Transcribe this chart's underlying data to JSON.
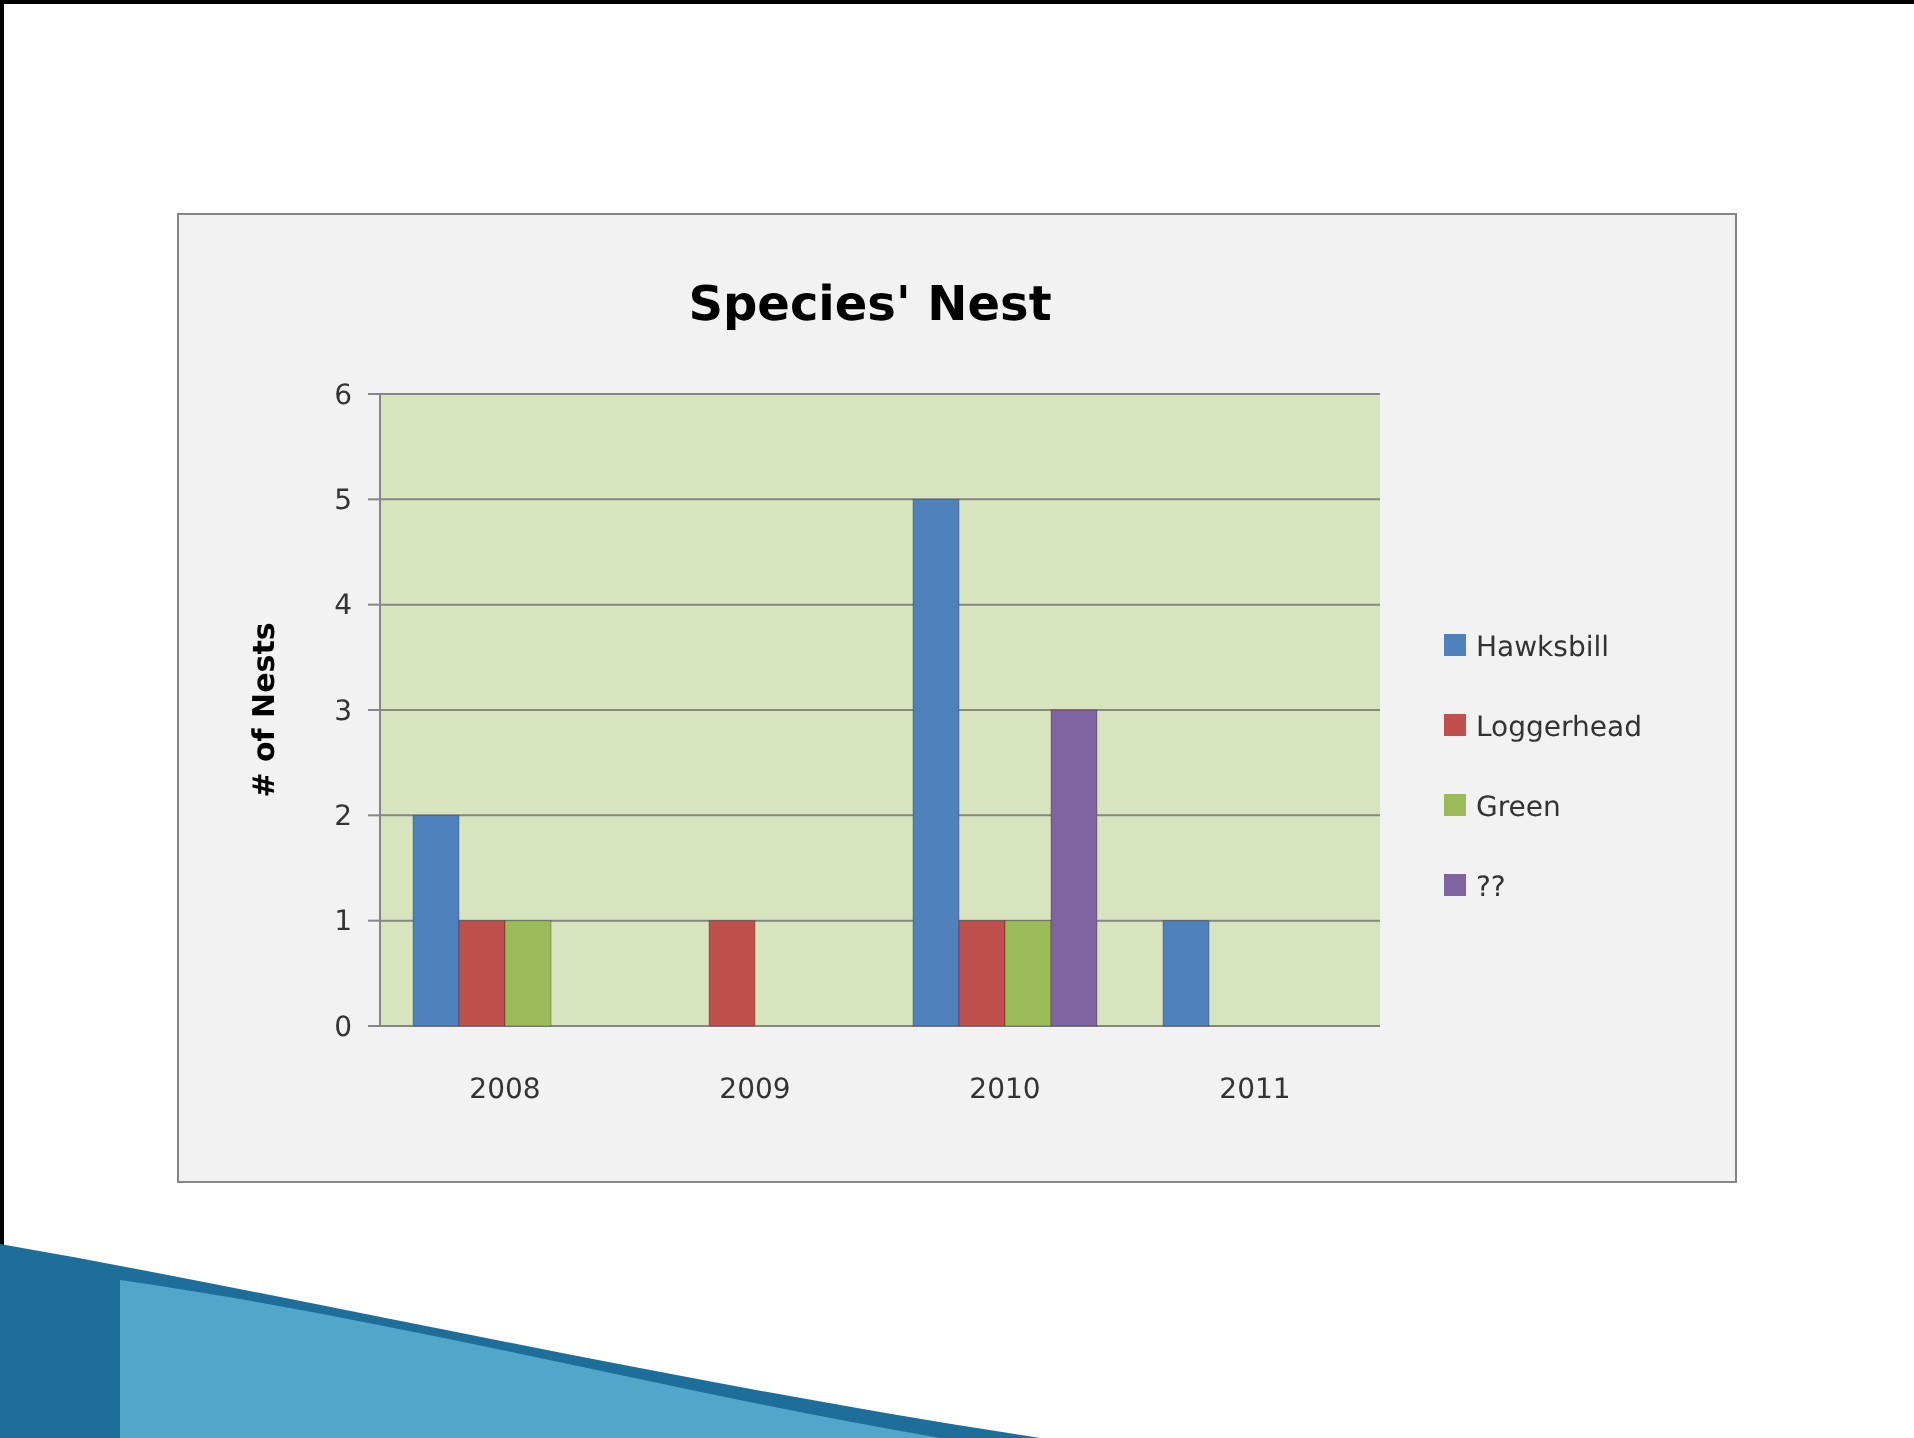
{
  "chart_data": {
    "type": "bar",
    "title": "Species' Nest",
    "ylabel": "# of Nests",
    "categories": [
      "2008",
      "2009",
      "2010",
      "2011"
    ],
    "series": [
      {
        "name": "Hawksbill",
        "color": "#4f81bd",
        "values": [
          2,
          null,
          5,
          1
        ]
      },
      {
        "name": "Loggerhead",
        "color": "#c0504d",
        "values": [
          1,
          1,
          1,
          null
        ]
      },
      {
        "name": "Green",
        "color": "#9bbb59",
        "values": [
          1,
          null,
          1,
          null
        ]
      },
      {
        "name": "??",
        "color": "#8064a2",
        "values": [
          null,
          null,
          3,
          null
        ]
      }
    ],
    "ylim": [
      0,
      6
    ],
    "yticks": [
      0,
      1,
      2,
      3,
      4,
      5,
      6
    ],
    "grid": "y",
    "legend": "right"
  }
}
